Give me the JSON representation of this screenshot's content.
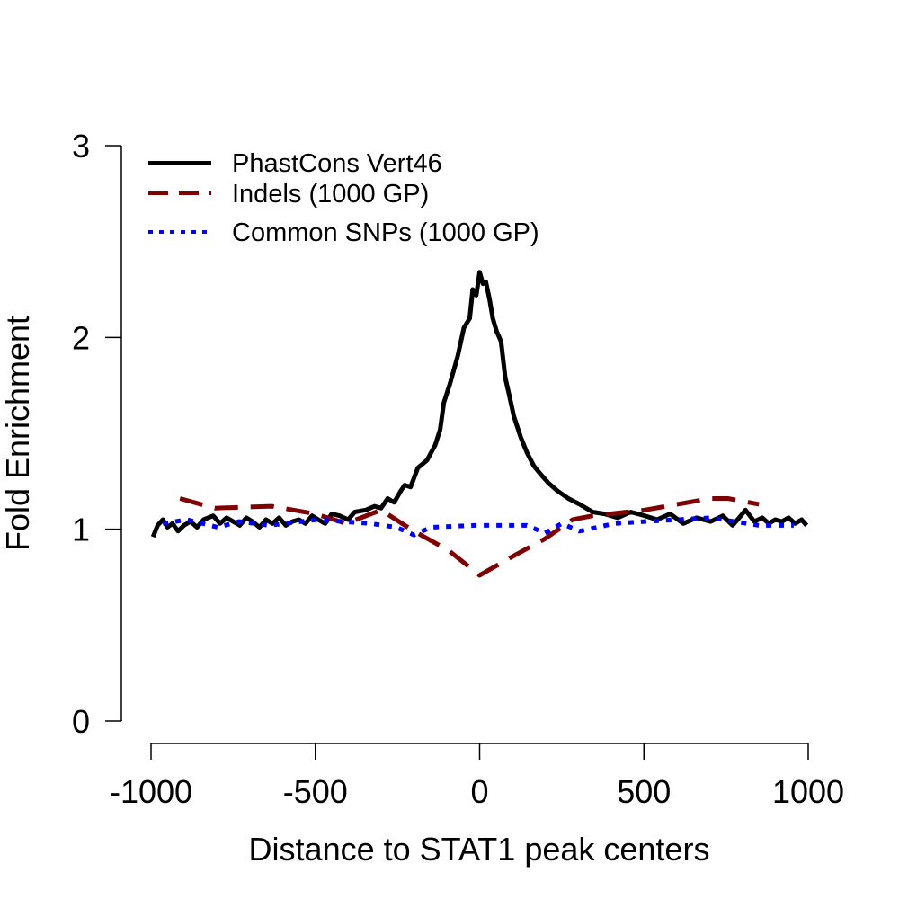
{
  "chart_data": {
    "type": "line",
    "title": "",
    "xlabel": "Distance to STAT1 peak centers",
    "ylabel": "Fold Enrichment",
    "xlim": [
      -1000,
      1000
    ],
    "ylim": [
      0,
      3
    ],
    "xticks": [
      -1000,
      -500,
      0,
      500,
      1000
    ],
    "yticks": [
      0,
      1,
      2,
      3
    ],
    "grid": false,
    "legend_position": "top-left",
    "series": [
      {
        "name": "PhastCons Vert46",
        "color": "#000000",
        "style": "solid",
        "x": [
          -994,
          -980,
          -964,
          -950,
          -935,
          -918,
          -900,
          -880,
          -860,
          -840,
          -811,
          -790,
          -770,
          -750,
          -730,
          -710,
          -691,
          -670,
          -650,
          -630,
          -610,
          -590,
          -570,
          -550,
          -530,
          -510,
          -491,
          -470,
          -450,
          -426,
          -400,
          -380,
          -346,
          -320,
          -300,
          -280,
          -260,
          -240,
          -228,
          -210,
          -188,
          -160,
          -135,
          -120,
          -109,
          -90,
          -67,
          -48,
          -30,
          -21,
          -10,
          0,
          10,
          19,
          30,
          40,
          52,
          65,
          78,
          90,
          104,
          125,
          144,
          165,
          184,
          210,
          237,
          270,
          304,
          344,
          380,
          420,
          460,
          503,
          540,
          580,
          620,
          660,
          703,
          740,
          770,
          790,
          809,
          836,
          860,
          880,
          900,
          920,
          940,
          960,
          980,
          995
        ],
        "y": [
          0.96,
          1.02,
          1.05,
          1.01,
          1.03,
          0.99,
          1.02,
          1.04,
          1.01,
          1.05,
          1.07,
          1.03,
          1.06,
          1.04,
          1.02,
          1.06,
          1.04,
          1.01,
          1.05,
          1.03,
          1.06,
          1.02,
          1.04,
          1.05,
          1.03,
          1.07,
          1.05,
          1.03,
          1.08,
          1.07,
          1.05,
          1.09,
          1.1,
          1.12,
          1.11,
          1.16,
          1.14,
          1.2,
          1.23,
          1.22,
          1.32,
          1.36,
          1.44,
          1.52,
          1.66,
          1.76,
          1.9,
          2.05,
          2.1,
          2.25,
          2.22,
          2.34,
          2.28,
          2.29,
          2.2,
          2.1,
          2.03,
          1.98,
          1.79,
          1.7,
          1.59,
          1.48,
          1.4,
          1.33,
          1.29,
          1.24,
          1.2,
          1.16,
          1.13,
          1.09,
          1.08,
          1.06,
          1.09,
          1.07,
          1.05,
          1.08,
          1.03,
          1.06,
          1.04,
          1.07,
          1.02,
          1.06,
          1.1,
          1.04,
          1.06,
          1.03,
          1.05,
          1.04,
          1.06,
          1.03,
          1.05,
          1.02
        ]
      },
      {
        "name": "Indels (1000 GP)",
        "color": "#7f0000",
        "style": "dashed",
        "x": [
          -912,
          -806,
          -633,
          -500,
          -406,
          -300,
          -200,
          -95,
          0,
          92,
          199,
          283,
          344,
          503,
          703,
          756,
          850
        ],
        "y": [
          1.16,
          1.11,
          1.12,
          1.08,
          1.03,
          1.1,
          0.99,
          0.89,
          0.76,
          0.85,
          0.95,
          1.05,
          1.07,
          1.1,
          1.16,
          1.16,
          1.13
        ]
      },
      {
        "name": "Common SNPs (1000 GP)",
        "color": "#0000ff",
        "style": "dotted",
        "x": [
          -964,
          -890,
          -797,
          -732,
          -639,
          -494,
          -333,
          -253,
          -200,
          -148,
          -15,
          144,
          199,
          250,
          304,
          410,
          503,
          703,
          850,
          956
        ],
        "y": [
          1.03,
          1.05,
          1.01,
          1.04,
          1.02,
          1.05,
          1.03,
          1.01,
          0.97,
          1.01,
          1.02,
          1.02,
          0.98,
          1.03,
          0.99,
          1.03,
          1.04,
          1.06,
          1.02,
          1.02
        ]
      }
    ]
  }
}
